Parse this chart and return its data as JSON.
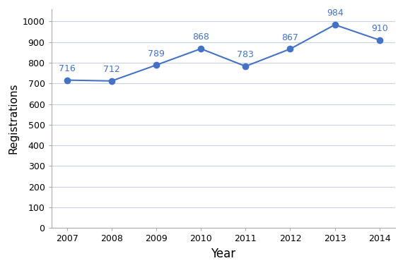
{
  "years": [
    2007,
    2008,
    2009,
    2010,
    2011,
    2012,
    2013,
    2014
  ],
  "values": [
    716,
    712,
    789,
    868,
    783,
    867,
    984,
    910
  ],
  "line_color": "#4472C4",
  "marker_color": "#4472C4",
  "marker_style": "o",
  "marker_size": 6,
  "line_width": 1.5,
  "xlabel": "Year",
  "ylabel": "Registrations",
  "xlabel_fontsize": 12,
  "ylabel_fontsize": 11,
  "tick_fontsize": 9,
  "annotation_fontsize": 9,
  "annotation_color": "#4472C4",
  "ylim": [
    0,
    1060
  ],
  "yticks": [
    0,
    100,
    200,
    300,
    400,
    500,
    600,
    700,
    800,
    900,
    1000
  ],
  "grid_color": "#c8d4e3",
  "grid_linewidth": 0.8,
  "background_color": "#ffffff",
  "spine_color": "#aaaaaa",
  "figure_facecolor": "#ffffff",
  "border_color": "#aaaaaa"
}
